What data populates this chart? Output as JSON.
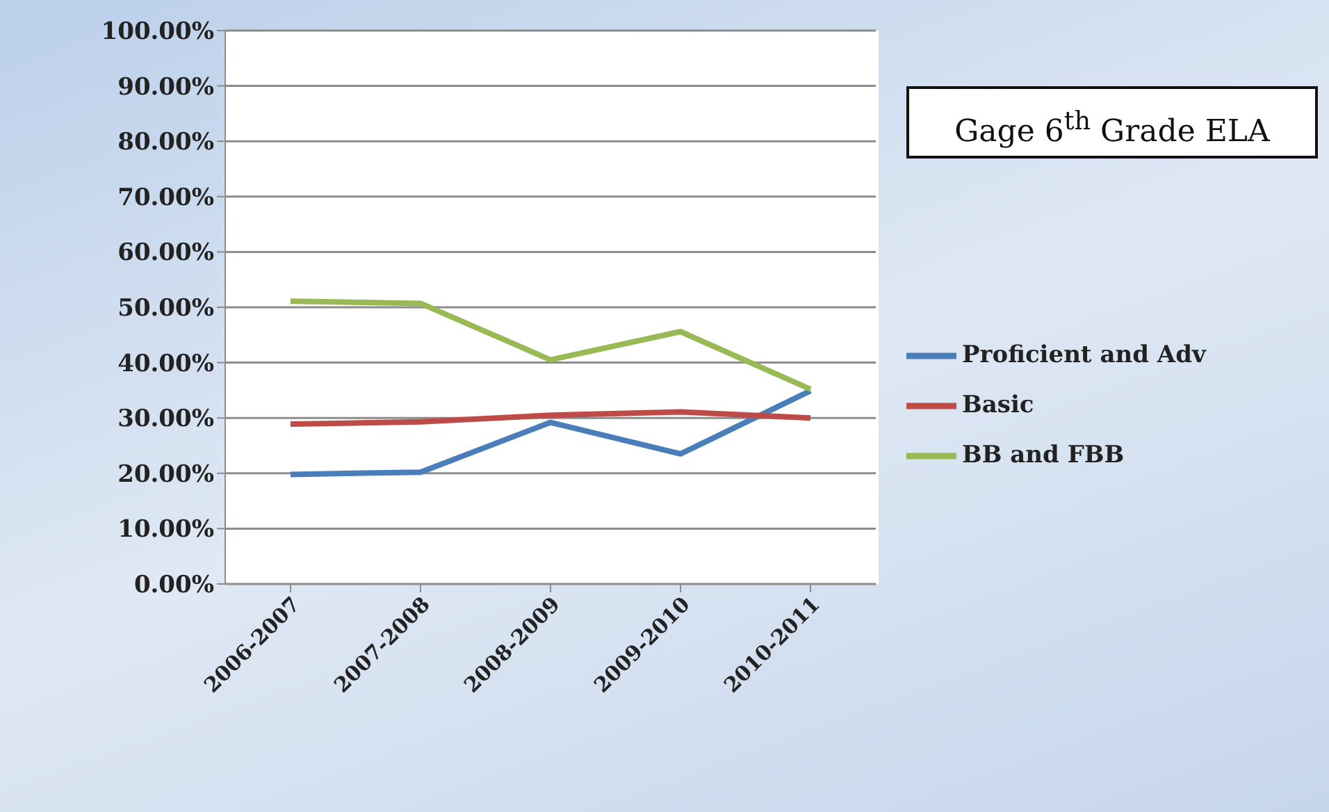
{
  "chart_data": {
    "type": "line",
    "title": "Gage 6$^{th}$ Grade ELA",
    "categories": [
      "2006-2007",
      "2007-2008",
      "2008-2009",
      "2009-2010",
      "2010-2011"
    ],
    "series": [
      {
        "name": "Proficient and Adv",
        "color": "#4a7ebb",
        "values": [
          19.8,
          20.2,
          29.2,
          23.5,
          34.9
        ]
      },
      {
        "name": "Basic",
        "color": "#be4b48",
        "values": [
          28.9,
          29.3,
          30.5,
          31.1,
          30.0
        ]
      },
      {
        "name": "BB and FBB",
        "color": "#98b954",
        "values": [
          51.1,
          50.7,
          40.5,
          45.6,
          35.2
        ]
      }
    ],
    "ylim": [
      0,
      100
    ],
    "yticks": [
      {
        "value": 0,
        "label": "0.00%"
      },
      {
        "value": 10,
        "label": "10.00%"
      },
      {
        "value": 20,
        "label": "20.00%"
      },
      {
        "value": 30,
        "label": "30.00%"
      },
      {
        "value": 40,
        "label": "40.00%"
      },
      {
        "value": 50,
        "label": "50.00%"
      },
      {
        "value": 60,
        "label": "60.00%"
      },
      {
        "value": 70,
        "label": "70.00%"
      },
      {
        "value": 80,
        "label": "80.00%"
      },
      {
        "value": 90,
        "label": "90.00%"
      },
      {
        "value": 100,
        "label": "100.00%"
      }
    ],
    "grid": "y",
    "legend": "right",
    "marker": "none",
    "line_style": "solid"
  }
}
